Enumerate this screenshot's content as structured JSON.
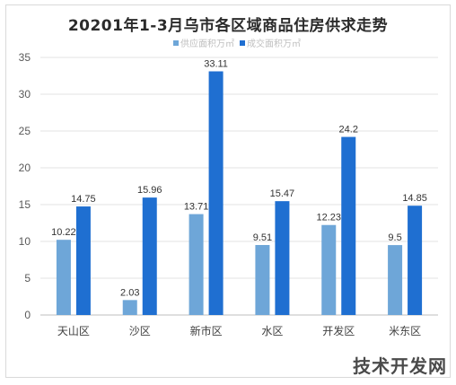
{
  "chart_data": {
    "type": "bar",
    "title": "20201年1-3月乌市各区域商品住房供求走势",
    "categories": [
      "天山区",
      "沙区",
      "新市区",
      "水区",
      "开发区",
      "米东区"
    ],
    "series": [
      {
        "name": "供应面积万㎡",
        "values": [
          10.22,
          2.03,
          13.71,
          9.51,
          12.23,
          9.5
        ],
        "labels": [
          "10.22",
          "2.03",
          "13.71",
          "9.51",
          "12.23",
          "9.5"
        ],
        "color": "#6ea6d8"
      },
      {
        "name": "成交面积万㎡",
        "values": [
          14.75,
          15.96,
          33.11,
          15.47,
          24.2,
          14.85
        ],
        "labels": [
          "14.75",
          "15.96",
          "33.11",
          "15.47",
          "24.2",
          "14.85"
        ],
        "color": "#1f6fd1"
      }
    ],
    "yticks": [
      "0",
      "5",
      "10",
      "15",
      "20",
      "25",
      "30",
      "35"
    ],
    "ylim": [
      0,
      35
    ],
    "grid": true,
    "legend_position": "top"
  },
  "watermark": "技术开发网"
}
